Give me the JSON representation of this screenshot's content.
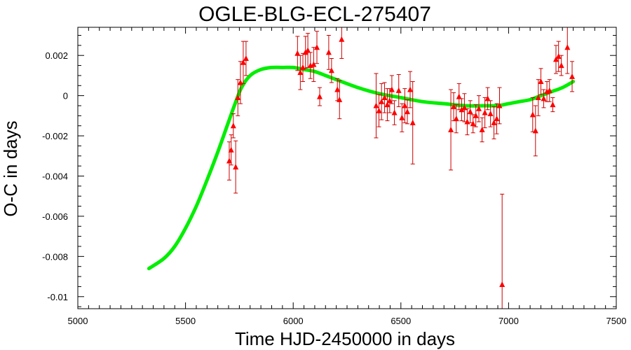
{
  "chart_data": {
    "type": "scatter",
    "title": "OGLE-BLG-ECL-275407",
    "xlabel": "Time HJD-2450000 in days",
    "ylabel": "O-C in days",
    "xlim": [
      5000,
      7500
    ],
    "ylim": [
      -0.0106,
      0.0034
    ],
    "x_ticks": [
      5000,
      5500,
      6000,
      6500,
      7000,
      7500
    ],
    "x_tick_labels": [
      "5000",
      "5500",
      "6000",
      "6500",
      "7000",
      "7500"
    ],
    "y_ticks": [
      0.002,
      0,
      -0.002,
      -0.004,
      -0.006,
      -0.008,
      -0.01
    ],
    "y_tick_labels": [
      "0.002",
      "0",
      "-0.002",
      "-0.004",
      "-0.006",
      "-0.008",
      "-0.01"
    ],
    "grid": false,
    "colors": {
      "points": "#ff0000",
      "error_bars": "#cc0000",
      "fit": "#00ee00",
      "axes": "#000000"
    },
    "series": [
      {
        "kind": "points_with_error_bars",
        "marker": "triangle",
        "points": [
          {
            "x": 5703,
            "y": -0.00325,
            "err": 0.00095
          },
          {
            "x": 5712,
            "y": -0.0027,
            "err": 0.00075
          },
          {
            "x": 5722,
            "y": -0.0015,
            "err": 0.0006
          },
          {
            "x": 5733,
            "y": -0.00355,
            "err": 0.0013
          },
          {
            "x": 5743,
            "y": -0.0001,
            "err": 0.0009
          },
          {
            "x": 5755,
            "y": 0.00065,
            "err": 0.00105
          },
          {
            "x": 5768,
            "y": 0.00165,
            "err": 0.00105
          },
          {
            "x": 5781,
            "y": 0.00185,
            "err": 0.00085
          },
          {
            "x": 6020,
            "y": 0.0021,
            "err": 0.00085
          },
          {
            "x": 6033,
            "y": 0.00115,
            "err": 0.00085
          },
          {
            "x": 6045,
            "y": 0.0014,
            "err": 0.0007
          },
          {
            "x": 6057,
            "y": 0.00215,
            "err": 0.0008
          },
          {
            "x": 6068,
            "y": 0.00225,
            "err": 0.00085
          },
          {
            "x": 6080,
            "y": 0.0015,
            "err": 0.00065
          },
          {
            "x": 6095,
            "y": 0.00155,
            "err": 0.00085
          },
          {
            "x": 6110,
            "y": 0.0024,
            "err": 0.0008
          },
          {
            "x": 6123,
            "y": -5e-05,
            "err": 0.00045
          },
          {
            "x": 6165,
            "y": 0.00215,
            "err": 0.00085
          },
          {
            "x": 6178,
            "y": 0.00125,
            "err": 0.0006
          },
          {
            "x": 6205,
            "y": 0.0003,
            "err": 0.00055
          },
          {
            "x": 6215,
            "y": -0.0002,
            "err": 0.00095
          },
          {
            "x": 6225,
            "y": 0.0028,
            "err": 0.00095
          },
          {
            "x": 6385,
            "y": -0.0005,
            "err": 0.0016
          },
          {
            "x": 6398,
            "y": -0.00075,
            "err": 0.0008
          },
          {
            "x": 6410,
            "y": -0.0003,
            "err": 0.0009
          },
          {
            "x": 6424,
            "y": -0.0001,
            "err": 0.00075
          },
          {
            "x": 6437,
            "y": -0.00045,
            "err": 0.0008
          },
          {
            "x": 6448,
            "y": -0.00025,
            "err": 0.0006
          },
          {
            "x": 6458,
            "y": 0.0003,
            "err": 0.0007
          },
          {
            "x": 6470,
            "y": -0.00085,
            "err": 0.0006
          },
          {
            "x": 6490,
            "y": 0.00025,
            "err": 0.0008
          },
          {
            "x": 6505,
            "y": -0.0011,
            "err": 0.0007
          },
          {
            "x": 6518,
            "y": -0.0005,
            "err": 0.00085
          },
          {
            "x": 6530,
            "y": -0.0008,
            "err": 0.0006
          },
          {
            "x": 6543,
            "y": 0.0003,
            "err": 0.0009
          },
          {
            "x": 6555,
            "y": -0.00135,
            "err": 0.00205
          },
          {
            "x": 6732,
            "y": -0.0017,
            "err": 0.002
          },
          {
            "x": 6745,
            "y": -0.00055,
            "err": 0.0007
          },
          {
            "x": 6757,
            "y": -0.00115,
            "err": 0.0007
          },
          {
            "x": 6770,
            "y": -5e-05,
            "err": 0.00065
          },
          {
            "x": 6782,
            "y": -0.0007,
            "err": 0.00055
          },
          {
            "x": 6795,
            "y": -0.0006,
            "err": 0.0007
          },
          {
            "x": 6808,
            "y": -0.0013,
            "err": 0.00065
          },
          {
            "x": 6822,
            "y": -0.0008,
            "err": 0.00055
          },
          {
            "x": 6835,
            "y": -0.0014,
            "err": 0.00045
          },
          {
            "x": 6848,
            "y": -0.001,
            "err": 0.00055
          },
          {
            "x": 6862,
            "y": -0.00065,
            "err": 0.00065
          },
          {
            "x": 6877,
            "y": -0.0017,
            "err": 0.0006
          },
          {
            "x": 6890,
            "y": -0.00085,
            "err": 0.00075
          },
          {
            "x": 6903,
            "y": -0.00015,
            "err": 0.00055
          },
          {
            "x": 6916,
            "y": -0.0009,
            "err": 0.00065
          },
          {
            "x": 6932,
            "y": -0.00135,
            "err": 0.0008
          },
          {
            "x": 6945,
            "y": -0.00115,
            "err": 0.00075
          },
          {
            "x": 6958,
            "y": -0.0005,
            "err": 0.0009
          },
          {
            "x": 6970,
            "y": -0.0094,
            "err": 0.0045
          },
          {
            "x": 7112,
            "y": -0.00095,
            "err": 0.00085
          },
          {
            "x": 7125,
            "y": -0.00175,
            "err": 0.00125
          },
          {
            "x": 7138,
            "y": -0.0001,
            "err": 0.0009
          },
          {
            "x": 7150,
            "y": 0.0007,
            "err": 0.00065
          },
          {
            "x": 7163,
            "y": -0.00015,
            "err": 0.00045
          },
          {
            "x": 7178,
            "y": 0.0002,
            "err": 0.0005
          },
          {
            "x": 7190,
            "y": 0.00025,
            "err": 0.00055
          },
          {
            "x": 7205,
            "y": -0.00045,
            "err": 0.00035
          },
          {
            "x": 7220,
            "y": 0.0018,
            "err": 0.0007
          },
          {
            "x": 7232,
            "y": 0.00195,
            "err": 0.00075
          },
          {
            "x": 7245,
            "y": 0.0015,
            "err": 0.0005
          },
          {
            "x": 7273,
            "y": 0.0024,
            "err": 0.0013
          },
          {
            "x": 7295,
            "y": 0.00095,
            "err": 0.00075
          }
        ]
      },
      {
        "kind": "fit_curve",
        "x": [
          5330,
          5400,
          5450,
          5500,
          5550,
          5600,
          5650,
          5700,
          5730,
          5760,
          5800,
          5850,
          5900,
          5950,
          6000,
          6050,
          6100,
          6150,
          6200,
          6300,
          6400,
          6500,
          6600,
          6700,
          6800,
          6900,
          6950,
          7000,
          7050,
          7100,
          7150,
          7200,
          7250,
          7300
        ],
        "y": [
          -0.0086,
          -0.0081,
          -0.0075,
          -0.0066,
          -0.0055,
          -0.0042,
          -0.0028,
          -0.0013,
          -0.0004,
          0.0004,
          0.001,
          0.0013,
          0.0014,
          0.0014,
          0.0014,
          0.0013,
          0.0012,
          0.001,
          0.0008,
          0.0004,
          0.0001,
          -0.0001,
          -0.0003,
          -0.0004,
          -0.0005,
          -0.0005,
          -0.0005,
          -0.0004,
          -0.0003,
          -0.0002,
          0.0,
          0.0002,
          0.0004,
          0.0007
        ]
      }
    ]
  }
}
